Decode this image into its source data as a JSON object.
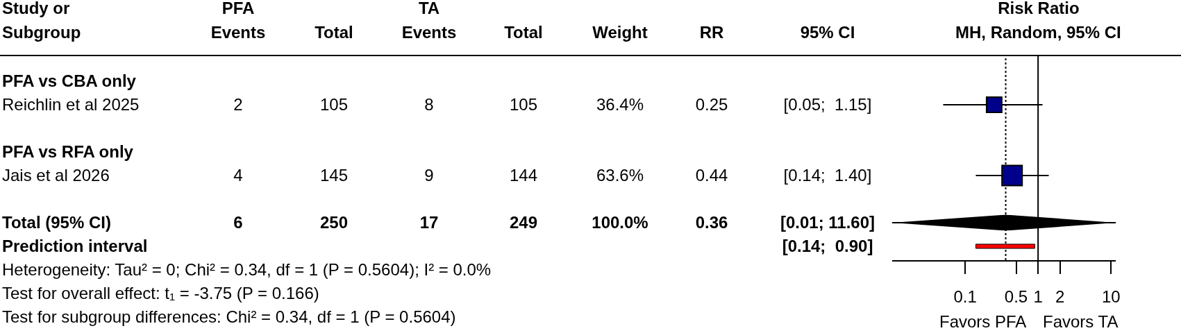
{
  "chart_data": [
    {
      "type": "other",
      "ylabel": "Study or Subgroup",
      "categories": [
        "PFA Events",
        "Total",
        "TA Events",
        "Total",
        "Weight",
        "RR",
        "95% CI"
      ],
      "y_categories": [
        "PFA vs CBA only",
        "Reichlin et al 2025",
        "PFA vs RFA only",
        "Jais et al 2026",
        "Total (95% CI)",
        "Prediction interval"
      ],
      "cell_labels": [
        [
          null,
          null,
          null,
          null,
          null,
          null,
          null
        ],
        [
          "2",
          "105",
          "8",
          "105",
          "36.4%",
          "0.25",
          "[0.05;  1.15]"
        ],
        [
          null,
          null,
          null,
          null,
          null,
          null,
          null
        ],
        [
          "4",
          "145",
          "9",
          "144",
          "63.6%",
          "0.44",
          "[0.14;  1.40]"
        ],
        [
          "6",
          "250",
          "17",
          "249",
          "100.0%",
          "0.36",
          "[0.01; 11.60]"
        ],
        [
          null,
          null,
          null,
          null,
          null,
          null,
          "[0.14;  0.90]"
        ]
      ],
      "annotations": [
        "Heterogeneity: Tau² = 0; Chi² = 0.34, df = 1 (P = 0.5604); I² = 0.0%",
        "Test for overall effect: t₁ = -3.75 (P = 0.166)",
        "Test for subgroup differences: Chi² = 0.34, df = 1 (P = 0.5604)"
      ]
    },
    {
      "type": "scatter",
      "title": "Risk Ratio",
      "subtitle": "MH, Random, 95% CI",
      "orientation": "horizontal",
      "log": "x",
      "tick_labels": "x",
      "categories": [
        null,
        null,
        null,
        null,
        null,
        null
      ],
      "xlim": [
        0.01,
        11.6
      ],
      "xticks": [
        0.1,
        0.5,
        1,
        2,
        10
      ],
      "series": [
        {
          "type": "bubble",
          "marker": "square",
          "color": "#00008b",
          "values": [
            null,
            0.25,
            null,
            0.44,
            null,
            null
          ],
          "sizes": [
            null,
            0.57,
            null,
            1,
            null,
            null
          ],
          "errors": [
            null,
            [
              0.05,
              1.15
            ],
            null,
            [
              0.14,
              1.4
            ],
            null,
            null
          ]
        },
        {
          "type": "scatter",
          "marker": "diamond",
          "color": "#000000",
          "values": [
            null,
            null,
            null,
            null,
            0.36,
            null
          ],
          "errors": [
            null,
            null,
            null,
            null,
            [
              0.01,
              11.6
            ],
            null
          ]
        },
        {
          "type": "bar",
          "color": "#ff0000",
          "base": [
            null,
            null,
            null,
            null,
            null,
            0.14
          ],
          "values": [
            null,
            null,
            null,
            null,
            null,
            0.76
          ]
        }
      ],
      "ref_lines": [
        {
          "axis": "x",
          "value": 1,
          "color": "#000000",
          "line_style": "solid"
        },
        {
          "axis": "x",
          "value": 0.36,
          "color": "#000000",
          "line_style": "dotted"
        }
      ],
      "annotations": [
        "Favors PFA",
        "Favors TA"
      ]
    }
  ]
}
